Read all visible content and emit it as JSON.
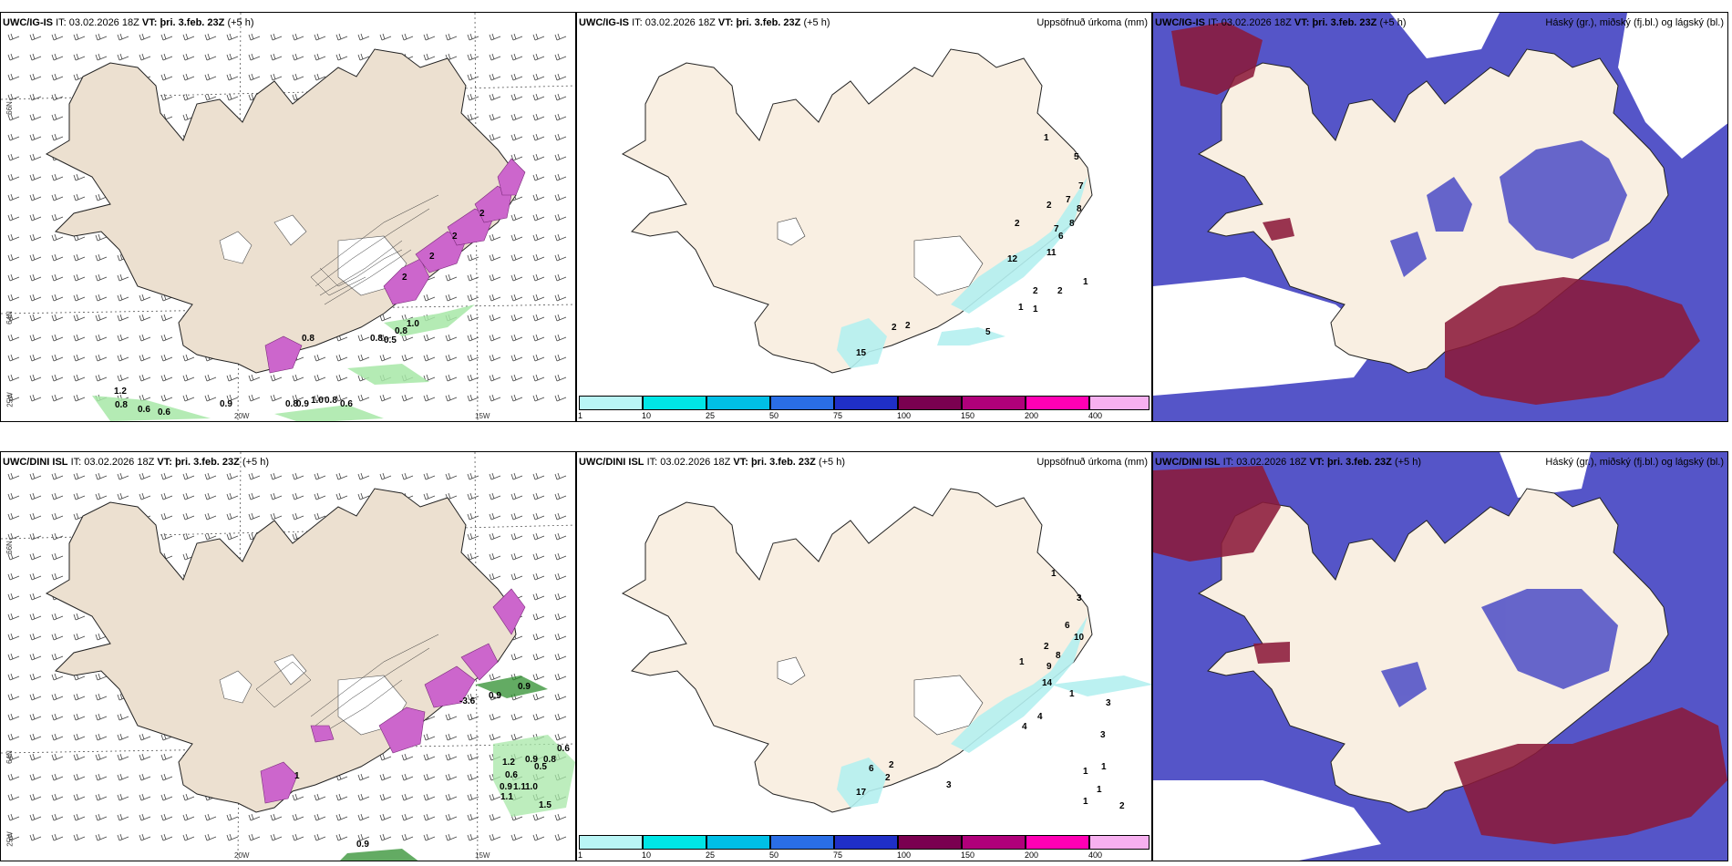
{
  "rows": [
    {
      "model": "UWC/IG-IS",
      "it_label": "IT:",
      "it_value": "03.02.2026 18Z",
      "vt_label": "VT:",
      "vt_value": "þri. 3.feb. 23Z",
      "offset": "(+5 h)"
    },
    {
      "model": "UWC/DINI ISL",
      "it_label": "IT:",
      "it_value": "03.02.2026 18Z",
      "vt_label": "VT:",
      "vt_value": "þri. 3.feb. 23Z",
      "offset": "(+5 h)"
    }
  ],
  "precip_title": "Uppsöfnuð úrkoma (mm)",
  "cloud_title": "Háský (gr.), miðský (fj.bl.) og lágský (bl.)",
  "colorbar": {
    "ticks": [
      "1",
      "10",
      "25",
      "50",
      "75",
      "100",
      "150",
      "200",
      "400"
    ],
    "colors": [
      "#b9f5f5",
      "#00e6e6",
      "#00bfe6",
      "#2a6ee6",
      "#1f2fc7",
      "#7a0050",
      "#b0007a",
      "#ff00b4",
      "#f7b0f0"
    ]
  },
  "axis_labels": {
    "lat_66": "66N",
    "lat_64": "64N",
    "lon_25": "25W",
    "lon_20": "20W",
    "lon_15": "15W"
  },
  "wind_panel_values": {
    "top": [
      "0.8",
      "0.6",
      "0.6",
      "0.9",
      "0.8",
      "0.9",
      "1.0",
      "0.8",
      "0.6",
      "0.8",
      "0.8",
      "0.5",
      "0.8",
      "1.0",
      "1.2",
      "2",
      "2",
      "2",
      "2"
    ],
    "bottom": [
      "0.9",
      "-3.6",
      "0.9",
      "1.2",
      "0.6",
      "0.9",
      "1.1",
      "1.0",
      "1.1",
      "1.5",
      "0.9",
      "0.8",
      "0.5",
      "0.6",
      "0.9",
      "1"
    ]
  },
  "precip_panel_values": {
    "top": [
      "1",
      "5",
      "7",
      "7",
      "2",
      "8",
      "7",
      "6",
      "8",
      "11",
      "2",
      "12",
      "2",
      "1",
      "2",
      "1",
      "1",
      "5",
      "2",
      "2",
      "15"
    ],
    "bottom": [
      "1",
      "3",
      "6",
      "10",
      "2",
      "8",
      "9",
      "1",
      "14",
      "4",
      "1",
      "3",
      "4",
      "3",
      "1",
      "1",
      "1",
      "1",
      "2",
      "2",
      "6",
      "2",
      "3",
      "17"
    ]
  },
  "colors": {
    "land": "#f9efe2",
    "land_wind": "#ece0d0",
    "pink": "#cc66cc",
    "green": "#a7e8a7",
    "cloud_blue": "#5555c8",
    "cloud_red": "#8b1a3a",
    "cyan": "#b4f0f0"
  }
}
